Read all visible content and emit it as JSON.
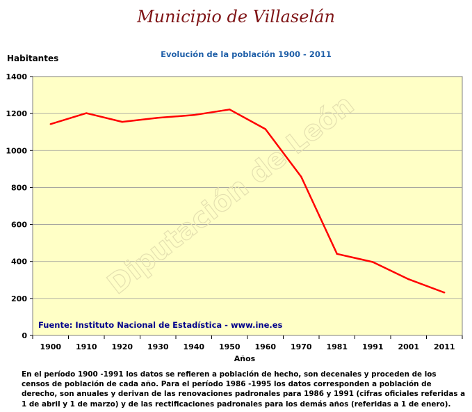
{
  "page": {
    "title": "Municipio de Villaselán",
    "footnote": "En el período 1900 -1991 los datos se refieren a población de hecho, son decenales y proceden de los censos de población de cada año. Para el período 1986 -1995 los datos corresponden a población de derecho, son anuales y derivan de las renovaciones padronales para 1986 y 1991 (cifras oficiales referidas a 1 de abril y 1 de marzo) y de las rectificaciones padronales para los demás años (referidas a 1 de enero).",
    "watermark": "Diputación de León"
  },
  "colors": {
    "title": "#7f1416",
    "subtitle": "#1f5fa8",
    "source": "#00008b",
    "plot_background": "#ffffc6",
    "line": "#ff0000",
    "grid": "#999999"
  },
  "chart_data": {
    "type": "line",
    "title": "Evolución de la población 1900 - 2011",
    "xlabel": "Años",
    "ylabel": "Habitantes",
    "source_note": "Fuente: Instituto Nacional de Estadística - www.ine.es",
    "categories": [
      "1900",
      "1910",
      "1920",
      "1930",
      "1940",
      "1950",
      "1960",
      "1970",
      "1981",
      "1991",
      "2001",
      "2011"
    ],
    "series": [
      {
        "values": [
          1143,
          1202,
          1155,
          1177,
          1192,
          1222,
          1116,
          858,
          441,
          397,
          304,
          232
        ]
      }
    ],
    "ylim": [
      0,
      1400
    ],
    "yticks": [
      0,
      200,
      400,
      600,
      800,
      1000,
      1200,
      1400
    ],
    "grid": true,
    "legend": "none"
  }
}
